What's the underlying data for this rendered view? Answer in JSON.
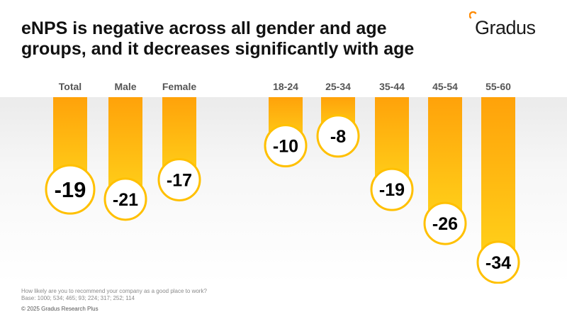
{
  "title_line1": "eNPS is negative across all gender and age",
  "title_line2": "groups, and it decreases significantly with age",
  "logo": "Gradus",
  "chart_data": {
    "type": "bar",
    "title": "eNPS is negative across all gender and age groups, and it decreases significantly with age",
    "categories": [
      "Total",
      "Male",
      "Female",
      "18-24",
      "25-34",
      "35-44",
      "45-54",
      "55-60"
    ],
    "values": [
      -19,
      -21,
      -17,
      -10,
      -8,
      -19,
      -26,
      -34
    ],
    "highlight": "Total",
    "ylim": [
      -40,
      0
    ],
    "colors": {
      "bar_top": "#ffa20a",
      "bar_bottom": "#ffd21a",
      "circle_border": "#ffc000",
      "label": "#000000",
      "category": "#555555"
    }
  },
  "footer": {
    "question": "How likely are you to recommend your company as a good place to work?",
    "base": "Base: 1000; 534; 465; 93; 224; 317; 252; 114",
    "copyright": "© 2025 Gradus Research Plus"
  }
}
